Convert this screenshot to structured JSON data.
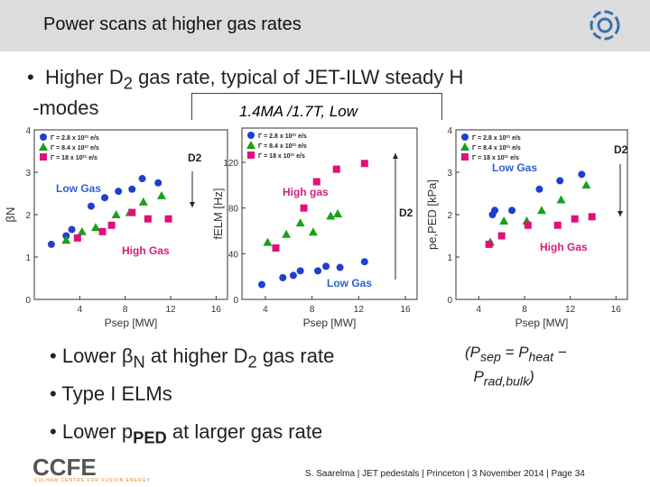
{
  "header": {
    "title": "Power scans at higher gas rates"
  },
  "bullet1": [
    "Higher D",
    "2",
    " gas rate, typical of JET-ILW steady H",
    "-modes"
  ],
  "condition": "1.4MA /1.7T, Low",
  "bullets": [
    [
      "Lower ",
      "β",
      "N",
      " at higher D",
      "2",
      " gas rate"
    ],
    [
      "Type I ELMs"
    ],
    [
      "Lower p",
      "PED",
      " at larger gas rate"
    ]
  ],
  "note": [
    "(P",
    "sep",
    " = P",
    "heat",
    " −",
    "P",
    "rad,bulk",
    ")"
  ],
  "logo": {
    "name": "CCFE",
    "subtitle": "CULHAM CENTRE FOR FUSION ENERGY"
  },
  "footer": "S. Saarelma | JET pedestals | Princeton | 3 November 2014 | Page 34",
  "chart_data": [
    {
      "type": "scatter",
      "xlabel": "Psep [MW]",
      "ylabel": "βN",
      "xlim": [
        0,
        17
      ],
      "ylim": [
        0,
        4
      ],
      "xticks": [
        4,
        8,
        12,
        16
      ],
      "yticks": [
        0,
        1,
        2,
        3,
        4
      ],
      "series": [
        {
          "name": "Γ = 2.8 x 10²¹ e/s",
          "color": "#1f3fd0",
          "marker": "circle",
          "x": [
            1.5,
            2.8,
            3.3,
            5,
            6.2,
            7.4,
            8.6,
            9.5,
            10.9
          ],
          "y": [
            1.3,
            1.5,
            1.65,
            2.2,
            2.4,
            2.55,
            2.6,
            2.85,
            2.75
          ]
        },
        {
          "name": "Γ = 8.4 x 10²¹ e/s",
          "color": "#1aa01a",
          "marker": "triangle",
          "x": [
            2.8,
            4.2,
            5.4,
            7.2,
            8.4,
            9.6,
            11.2
          ],
          "y": [
            1.4,
            1.6,
            1.7,
            2.0,
            2.05,
            2.3,
            2.45
          ]
        },
        {
          "name": "Γ = 18 x 10²¹ e/s",
          "color": "#e0107a",
          "marker": "square",
          "x": [
            3.8,
            6,
            6.8,
            8.6,
            10,
            11.8
          ],
          "y": [
            1.45,
            1.6,
            1.75,
            2.05,
            1.9,
            1.9
          ]
        }
      ],
      "annotations": [
        {
          "text": "D2",
          "color": "#222222"
        },
        {
          "text": "Low Gas",
          "color": "#2f5fd0"
        },
        {
          "text": "High Gas",
          "color": "#d0207a"
        }
      ]
    },
    {
      "type": "scatter",
      "xlabel": "Psep [MW]",
      "ylabel": "fELM [Hz]",
      "xlim": [
        2,
        17
      ],
      "ylim": [
        0,
        150
      ],
      "xticks": [
        4,
        8,
        12,
        16
      ],
      "yticks": [
        0,
        40,
        80,
        120
      ],
      "series": [
        {
          "name": "Γ = 2.8 x 10²¹ e/s",
          "color": "#1f3fd0",
          "marker": "circle",
          "x": [
            3.7,
            5.5,
            6.4,
            7,
            8.5,
            9.2,
            10.4,
            12.5
          ],
          "y": [
            13,
            19,
            21,
            25,
            25,
            29,
            28,
            33
          ]
        },
        {
          "name": "Γ = 8.4 x 10²¹ e/s",
          "color": "#1aa01a",
          "marker": "triangle",
          "x": [
            4.2,
            5.8,
            7,
            8.1,
            9.6,
            10.2
          ],
          "y": [
            50,
            57,
            67,
            59,
            73,
            75
          ]
        },
        {
          "name": "Γ = 18 x 10²¹ e/s",
          "color": "#e0107a",
          "marker": "square",
          "x": [
            4.9,
            7.3,
            8.4,
            10.1,
            12.5
          ],
          "y": [
            45,
            80,
            103,
            114,
            119
          ]
        }
      ],
      "annotations": [
        {
          "text": "D2",
          "color": "#222222"
        },
        {
          "text": "Low Gas",
          "color": "#2f5fd0"
        },
        {
          "text": "High gas",
          "color": "#d0207a"
        }
      ]
    },
    {
      "type": "scatter",
      "xlabel": "Psep [MW]",
      "ylabel": "pe,PED [kPa]",
      "xlim": [
        2,
        17
      ],
      "ylim": [
        0,
        4
      ],
      "xticks": [
        4,
        8,
        12,
        16
      ],
      "yticks": [
        0,
        1,
        2,
        3,
        4
      ],
      "series": [
        {
          "name": "Γ = 2.8 x 10²¹ e/s",
          "color": "#1f3fd0",
          "marker": "circle",
          "x": [
            5.2,
            5.4,
            6.9,
            9.3,
            11.1,
            13
          ],
          "y": [
            2,
            2.1,
            2.1,
            2.6,
            2.8,
            2.95
          ]
        },
        {
          "name": "Γ = 8.4 x 10²¹ e/s",
          "color": "#1aa01a",
          "marker": "triangle",
          "x": [
            5,
            6.2,
            8.2,
            9.5,
            11.2,
            13.4
          ],
          "y": [
            1.35,
            1.85,
            1.85,
            2.1,
            2.35,
            2.7
          ]
        },
        {
          "name": "Γ = 18 x 10²¹ e/s",
          "color": "#e0107a",
          "marker": "square",
          "x": [
            4.9,
            6,
            8.3,
            10.9,
            12.4,
            13.9
          ],
          "y": [
            1.3,
            1.5,
            1.75,
            1.75,
            1.9,
            1.95
          ]
        }
      ],
      "annotations": [
        {
          "text": "D2",
          "color": "#222222"
        },
        {
          "text": "Low Gas",
          "color": "#2f5fd0"
        },
        {
          "text": "High Gas",
          "color": "#d0207a"
        }
      ]
    }
  ]
}
